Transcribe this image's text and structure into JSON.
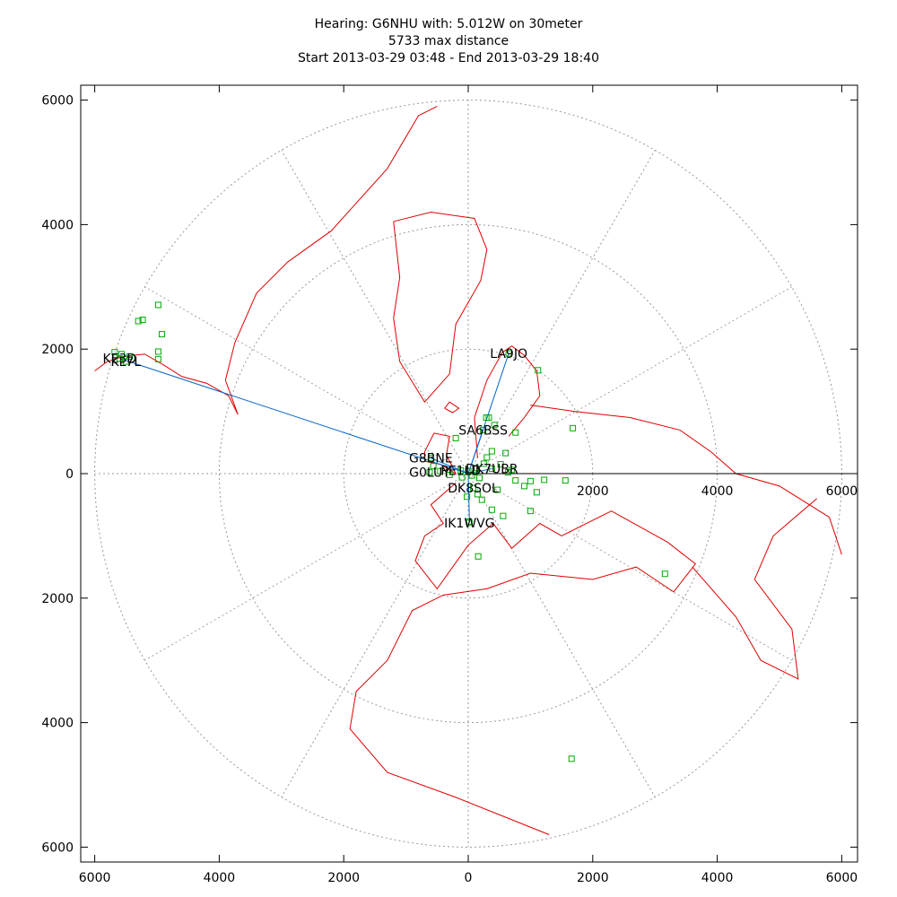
{
  "title_lines": [
    "Hearing: G6NHU with: 5.012W on 30meter",
    "5733 max distance",
    "Start 2013-03-29 03:48 - End 2013-03-29 18:40"
  ],
  "chart_data": {
    "type": "scatter",
    "title": "Hearing: G6NHU with: 5.012W on 30meter",
    "subtitle": "5733 max distance | Start 2013-03-29 03:48 - End 2013-03-29 18:40",
    "xlim": [
      -6200,
      6200
    ],
    "ylim": [
      -6200,
      6200
    ],
    "x_tick_labels": [
      "6000",
      "4000",
      "2000",
      "0",
      "2000",
      "4000",
      "6000"
    ],
    "y_tick_labels": [
      "6000",
      "4000",
      "2000",
      "0",
      "2000",
      "4000",
      "6000"
    ],
    "grid": "polar (range rings every 2000, spokes every 30°)",
    "ring_radii": [
      2000,
      4000,
      6000
    ],
    "inner_axis_tick_labels": [
      "2000",
      "4000",
      "6000"
    ],
    "colors": {
      "map": "#e00000",
      "stations": "#00aa00",
      "paths": "#0066cc",
      "grid": "#999999"
    },
    "labeled_stations": [
      {
        "label": "KL7L",
        "x": -5500,
        "y": 1800
      },
      {
        "label": "KE3D",
        "x": -5600,
        "y": 1850
      },
      {
        "label": "LA9JO",
        "x": 650,
        "y": 1930
      },
      {
        "label": "SA6BSS",
        "x": 240,
        "y": 700
      },
      {
        "label": "G8BNE",
        "x": -600,
        "y": 250
      },
      {
        "label": "G0LUY",
        "x": -620,
        "y": 20
      },
      {
        "label": "PE1LD",
        "x": -120,
        "y": 50
      },
      {
        "label": "DK7UBR",
        "x": 380,
        "y": 80
      },
      {
        "label": "DK8SOL",
        "x": 80,
        "y": -230
      },
      {
        "label": "IK1WVG",
        "x": 20,
        "y": -790
      }
    ],
    "spots": [
      {
        "x": -5680,
        "y": 1950
      },
      {
        "x": -5570,
        "y": 1920
      },
      {
        "x": -5440,
        "y": 1880
      },
      {
        "x": -5300,
        "y": 2450
      },
      {
        "x": -5230,
        "y": 2470
      },
      {
        "x": -4980,
        "y": 2710
      },
      {
        "x": -4920,
        "y": 2240
      },
      {
        "x": -4980,
        "y": 1960
      },
      {
        "x": -4980,
        "y": 1840
      },
      {
        "x": -560,
        "y": 120
      },
      {
        "x": -450,
        "y": 40
      },
      {
        "x": -300,
        "y": -20
      },
      {
        "x": -200,
        "y": 570
      },
      {
        "x": -100,
        "y": -60
      },
      {
        "x": 0,
        "y": 40
      },
      {
        "x": 60,
        "y": -30
      },
      {
        "x": 120,
        "y": 90
      },
      {
        "x": 180,
        "y": -70
      },
      {
        "x": 250,
        "y": 160
      },
      {
        "x": 300,
        "y": 260
      },
      {
        "x": 330,
        "y": 900
      },
      {
        "x": 420,
        "y": 780
      },
      {
        "x": 380,
        "y": 360
      },
      {
        "x": 520,
        "y": 150
      },
      {
        "x": 600,
        "y": 330
      },
      {
        "x": 700,
        "y": 60
      },
      {
        "x": 760,
        "y": -110
      },
      {
        "x": 900,
        "y": -200
      },
      {
        "x": 1000,
        "y": -120
      },
      {
        "x": 1100,
        "y": -300
      },
      {
        "x": 1220,
        "y": -100
      },
      {
        "x": 1560,
        "y": -110
      },
      {
        "x": 1680,
        "y": 730
      },
      {
        "x": 1120,
        "y": 1660
      },
      {
        "x": 290,
        "y": 900
      },
      {
        "x": 150,
        "y": -330
      },
      {
        "x": -20,
        "y": -370
      },
      {
        "x": 220,
        "y": -420
      },
      {
        "x": 380,
        "y": -580
      },
      {
        "x": 560,
        "y": -680
      },
      {
        "x": 1000,
        "y": -600
      },
      {
        "x": 10,
        "y": -770
      },
      {
        "x": 160,
        "y": -1330
      },
      {
        "x": 3160,
        "y": -1610
      },
      {
        "x": 1660,
        "y": -4580
      },
      {
        "x": 760,
        "y": 660
      },
      {
        "x": 640,
        "y": 20
      },
      {
        "x": 470,
        "y": -260
      }
    ],
    "paths": [
      {
        "to": "KE3D",
        "x": -5600,
        "y": 1850
      },
      {
        "to": "LA9JO",
        "x": 650,
        "y": 1930
      },
      {
        "to": "SA6BSS",
        "x": 240,
        "y": 700
      },
      {
        "to": "G8BNE",
        "x": -600,
        "y": 250
      },
      {
        "to": "DK7UBR",
        "x": 380,
        "y": 80
      },
      {
        "to": "IK1WVG",
        "x": 20,
        "y": -790
      }
    ]
  }
}
